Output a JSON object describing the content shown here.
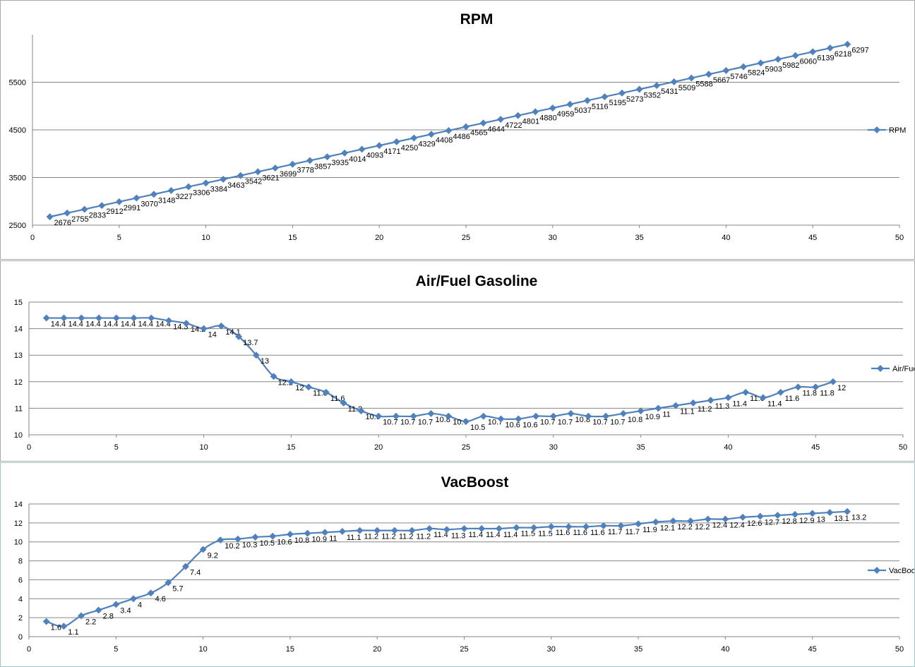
{
  "chart_data": [
    {
      "type": "line",
      "title": "RPM",
      "xlabel": "",
      "ylabel": "",
      "xlim": [
        0,
        50
      ],
      "ylim": [
        2500,
        6500
      ],
      "xticks": [
        0,
        5,
        10,
        15,
        20,
        25,
        30,
        35,
        40,
        45,
        50
      ],
      "yticks": [
        2500,
        3500,
        4500,
        5500
      ],
      "grid": true,
      "legend": "right",
      "color": "#4f81bd",
      "series": [
        {
          "name": "RPM",
          "x": [
            1,
            2,
            3,
            4,
            5,
            6,
            7,
            8,
            9,
            10,
            11,
            12,
            13,
            14,
            15,
            16,
            17,
            18,
            19,
            20,
            21,
            22,
            23,
            24,
            25,
            26,
            27,
            28,
            29,
            30,
            31,
            32,
            33,
            34,
            35,
            36,
            37,
            38,
            39,
            40,
            41,
            42,
            43,
            44,
            45,
            46,
            47
          ],
          "values": [
            2676,
            2755,
            2833,
            2912,
            2991,
            3070,
            3148,
            3227,
            3306,
            3384,
            3463,
            3542,
            3621,
            3699,
            3778,
            3857,
            3935,
            4014,
            4093,
            4171,
            4250,
            4329,
            4408,
            4486,
            4565,
            4644,
            4722,
            4801,
            4880,
            4959,
            5037,
            5116,
            5195,
            5273,
            5352,
            5431,
            5509,
            5588,
            5667,
            5746,
            5824,
            5903,
            5982,
            6060,
            6139,
            6218,
            6297
          ]
        }
      ]
    },
    {
      "type": "line",
      "title": "Air/Fuel Gasoline",
      "xlabel": "",
      "ylabel": "",
      "xlim": [
        0,
        50
      ],
      "ylim": [
        10,
        15
      ],
      "xticks": [
        0,
        5,
        10,
        15,
        20,
        25,
        30,
        35,
        40,
        45,
        50
      ],
      "yticks": [
        10,
        11,
        12,
        13,
        14,
        15
      ],
      "grid": true,
      "legend": "right",
      "color": "#4f81bd",
      "series": [
        {
          "name": "Air/Fuel Gasoline",
          "x": [
            1,
            2,
            3,
            4,
            5,
            6,
            7,
            8,
            9,
            10,
            11,
            12,
            13,
            14,
            15,
            16,
            17,
            18,
            19,
            20,
            21,
            22,
            23,
            24,
            25,
            26,
            27,
            28,
            29,
            30,
            31,
            32,
            33,
            34,
            35,
            36,
            37,
            38,
            39,
            40,
            41,
            42,
            43,
            44,
            45,
            46
          ],
          "values": [
            14.4,
            14.4,
            14.4,
            14.4,
            14.4,
            14.4,
            14.4,
            14.3,
            14.2,
            14,
            14.1,
            13.7,
            13,
            12.2,
            12,
            11.8,
            11.6,
            11.2,
            10.9,
            10.7,
            10.7,
            10.7,
            10.8,
            10.7,
            10.5,
            10.7,
            10.6,
            10.6,
            10.7,
            10.7,
            10.8,
            10.7,
            10.7,
            10.8,
            10.9,
            11,
            11.1,
            11.2,
            11.3,
            11.4,
            11.6,
            11.4,
            11.6,
            11.8,
            11.8,
            12
          ]
        }
      ]
    },
    {
      "type": "line",
      "title": "VacBoost",
      "xlabel": "",
      "ylabel": "",
      "xlim": [
        0,
        50
      ],
      "ylim": [
        0,
        14
      ],
      "xticks": [
        0,
        5,
        10,
        15,
        20,
        25,
        30,
        35,
        40,
        45,
        50
      ],
      "yticks": [
        0,
        2,
        4,
        6,
        8,
        10,
        12,
        14
      ],
      "grid": true,
      "legend": "right",
      "color": "#4f81bd",
      "series": [
        {
          "name": "VacBoost",
          "x": [
            1,
            2,
            3,
            4,
            5,
            6,
            7,
            8,
            9,
            10,
            11,
            12,
            13,
            14,
            15,
            16,
            17,
            18,
            19,
            20,
            21,
            22,
            23,
            24,
            25,
            26,
            27,
            28,
            29,
            30,
            31,
            32,
            33,
            34,
            35,
            36,
            37,
            38,
            39,
            40,
            41,
            42,
            43,
            44,
            45,
            46,
            47
          ],
          "values": [
            1.6,
            1.1,
            2.2,
            2.8,
            3.4,
            4,
            4.6,
            5.7,
            7.4,
            9.2,
            10.2,
            10.3,
            10.5,
            10.6,
            10.8,
            10.9,
            11,
            11.1,
            11.2,
            11.2,
            11.2,
            11.2,
            11.4,
            11.3,
            11.4,
            11.4,
            11.4,
            11.5,
            11.5,
            11.6,
            11.6,
            11.6,
            11.7,
            11.7,
            11.9,
            12.1,
            12.2,
            12.2,
            12.4,
            12.4,
            12.6,
            12.7,
            12.8,
            12.9,
            13,
            13.1,
            13.2
          ]
        }
      ]
    }
  ]
}
